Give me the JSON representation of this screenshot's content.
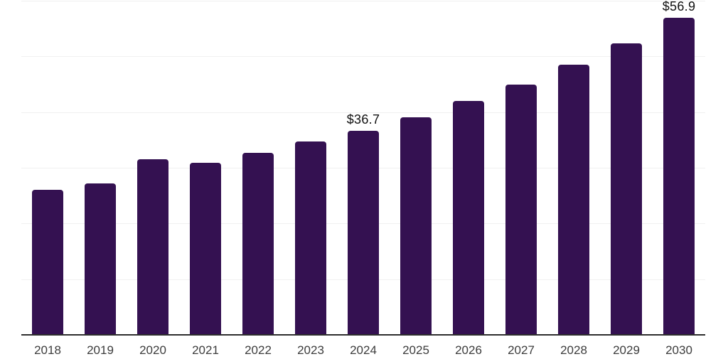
{
  "chart_data": {
    "type": "bar",
    "title": "",
    "xlabel": "",
    "ylabel": "",
    "categories": [
      "2018",
      "2019",
      "2020",
      "2021",
      "2022",
      "2023",
      "2024",
      "2025",
      "2026",
      "2027",
      "2028",
      "2029",
      "2030"
    ],
    "values": [
      26.0,
      27.2,
      31.5,
      30.9,
      32.7,
      34.7,
      36.7,
      39.1,
      42.0,
      45.0,
      48.5,
      52.4,
      56.9
    ],
    "data_labels": {
      "2024": "$36.7",
      "2030": "$56.9"
    },
    "ylim": [
      0,
      60
    ],
    "gridline_step": 10,
    "grid": "horizontal-only",
    "y_tick_labels_visible": false,
    "legend": "none"
  },
  "colors": {
    "background": "#ffffff",
    "bar": "#341151",
    "axis_line": "#2e2e2e",
    "gridline": "#f0f0f0",
    "tick_label": "#3c3c3c",
    "data_label": "#111111"
  }
}
